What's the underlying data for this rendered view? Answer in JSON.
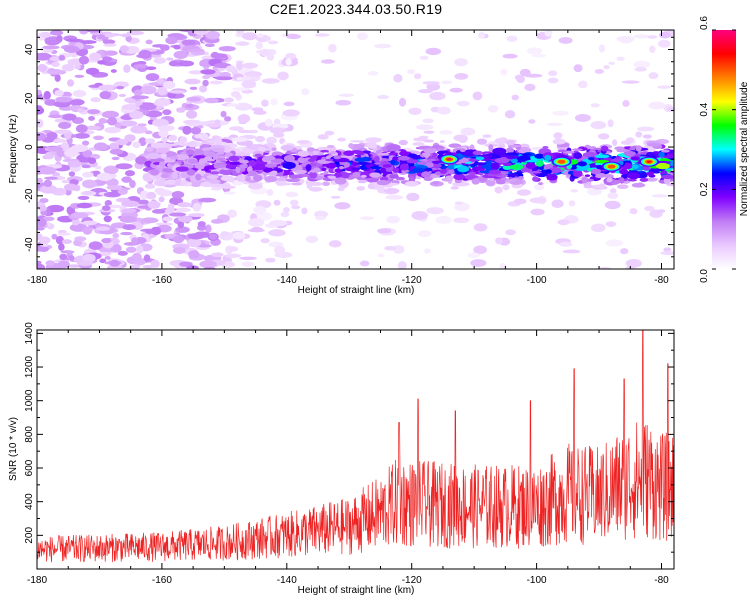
{
  "figure_title": "C2E1.2023.344.03.50.R19",
  "chart_data": [
    {
      "type": "heatmap",
      "title": "",
      "xlabel": "Height of straight line (km)",
      "ylabel": "Frequency (Hz)",
      "xlim": [
        -180,
        -78
      ],
      "ylim": [
        -50,
        48
      ],
      "x_ticks": [
        -180,
        -160,
        -140,
        -120,
        -100,
        -80
      ],
      "y_ticks": [
        -40,
        -20,
        0,
        20,
        40
      ],
      "colorbar": {
        "label": "Normalized spectral amplitude",
        "range": [
          0.0,
          0.6
        ],
        "ticks": [
          0.0,
          0.2,
          0.4,
          0.6
        ],
        "colors": [
          "#ffffff",
          "#e9c8ff",
          "#c07cf5",
          "#8000ff",
          "#0000ff",
          "#00ffff",
          "#00ff00",
          "#ffff00",
          "#ff8000",
          "#ff0000",
          "#ff0080"
        ]
      },
      "band_center_frequency": -7,
      "description_peaks": [
        {
          "x": -114,
          "y": -5,
          "value": 0.6
        },
        {
          "x": -96,
          "y": -6,
          "value": 0.5
        },
        {
          "x": -88,
          "y": -8,
          "value": 0.5
        },
        {
          "x": -82,
          "y": -6,
          "value": 0.55
        }
      ]
    },
    {
      "type": "line",
      "title": "",
      "xlabel": "Height of straight line (km)",
      "ylabel": "SNR (10 * v/v)",
      "xlim": [
        -180,
        -78
      ],
      "ylim": [
        0,
        1420
      ],
      "x_ticks": [
        -180,
        -160,
        -140,
        -120,
        -100,
        -80
      ],
      "y_ticks": [
        200,
        400,
        600,
        800,
        1000,
        1200,
        1400
      ],
      "color": "#ee2222",
      "envelope_x": [
        -180,
        -160,
        -150,
        -140,
        -130,
        -125,
        -122,
        -120,
        -110,
        -100,
        -95,
        -90,
        -85,
        -82,
        -80,
        -78
      ],
      "envelope_y": [
        150,
        170,
        200,
        260,
        330,
        430,
        520,
        500,
        480,
        480,
        580,
        560,
        680,
        700,
        620,
        640
      ],
      "peaks": [
        {
          "x": -122,
          "y": 870
        },
        {
          "x": -119,
          "y": 1010
        },
        {
          "x": -113,
          "y": 940
        },
        {
          "x": -101,
          "y": 1000
        },
        {
          "x": -94,
          "y": 1190
        },
        {
          "x": -86,
          "y": 1130
        },
        {
          "x": -83,
          "y": 1420
        },
        {
          "x": -79,
          "y": 1220
        }
      ]
    }
  ]
}
